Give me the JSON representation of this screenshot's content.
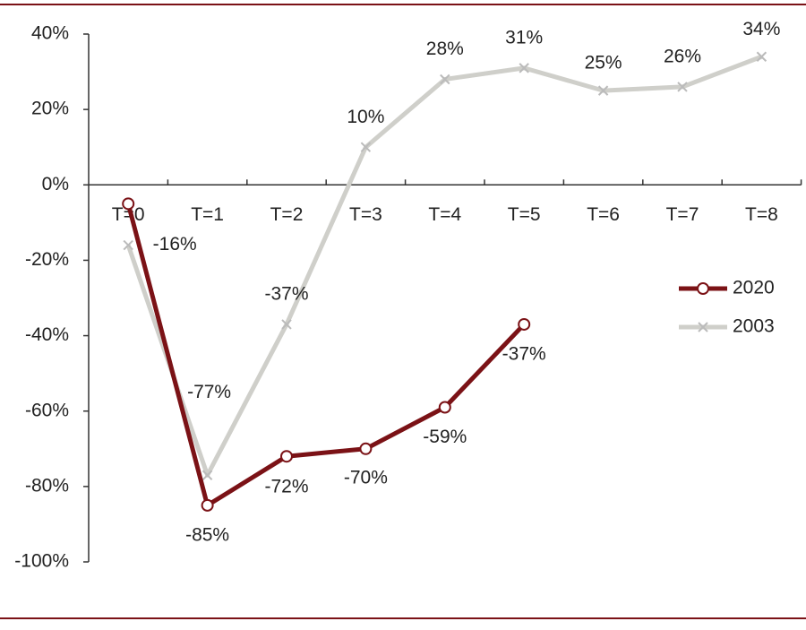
{
  "chart_data": {
    "type": "line",
    "categories": [
      "T=0",
      "T=1",
      "T=2",
      "T=3",
      "T=4",
      "T=5",
      "T=6",
      "T=7",
      "T=8"
    ],
    "series": [
      {
        "name": "2020",
        "color": "#7b1216",
        "values": [
          -5,
          -85,
          -72,
          -70,
          -59,
          -37,
          null,
          null,
          null
        ],
        "value_labels": [
          null,
          "-85%",
          "-72%",
          "-70%",
          "-59%",
          "-37%",
          null,
          null,
          null
        ]
      },
      {
        "name": "2003",
        "color": "#cfcfca",
        "values": [
          -16,
          -77,
          -37,
          10,
          28,
          31,
          25,
          26,
          34
        ],
        "value_labels": [
          "-16%",
          "-77%",
          "-37%",
          "10%",
          "28%",
          "31%",
          "25%",
          "26%",
          "34%"
        ]
      }
    ],
    "ylim": [
      -100,
      40
    ],
    "yticks": [
      {
        "value": -100,
        "label": "-100%"
      },
      {
        "value": -80,
        "label": "-80%"
      },
      {
        "value": -60,
        "label": "-60%"
      },
      {
        "value": -40,
        "label": "-40%"
      },
      {
        "value": -20,
        "label": "-20%"
      },
      {
        "value": 0,
        "label": "0%"
      },
      {
        "value": 20,
        "label": "20%"
      },
      {
        "value": 40,
        "label": "40%"
      }
    ],
    "legend": "right"
  }
}
